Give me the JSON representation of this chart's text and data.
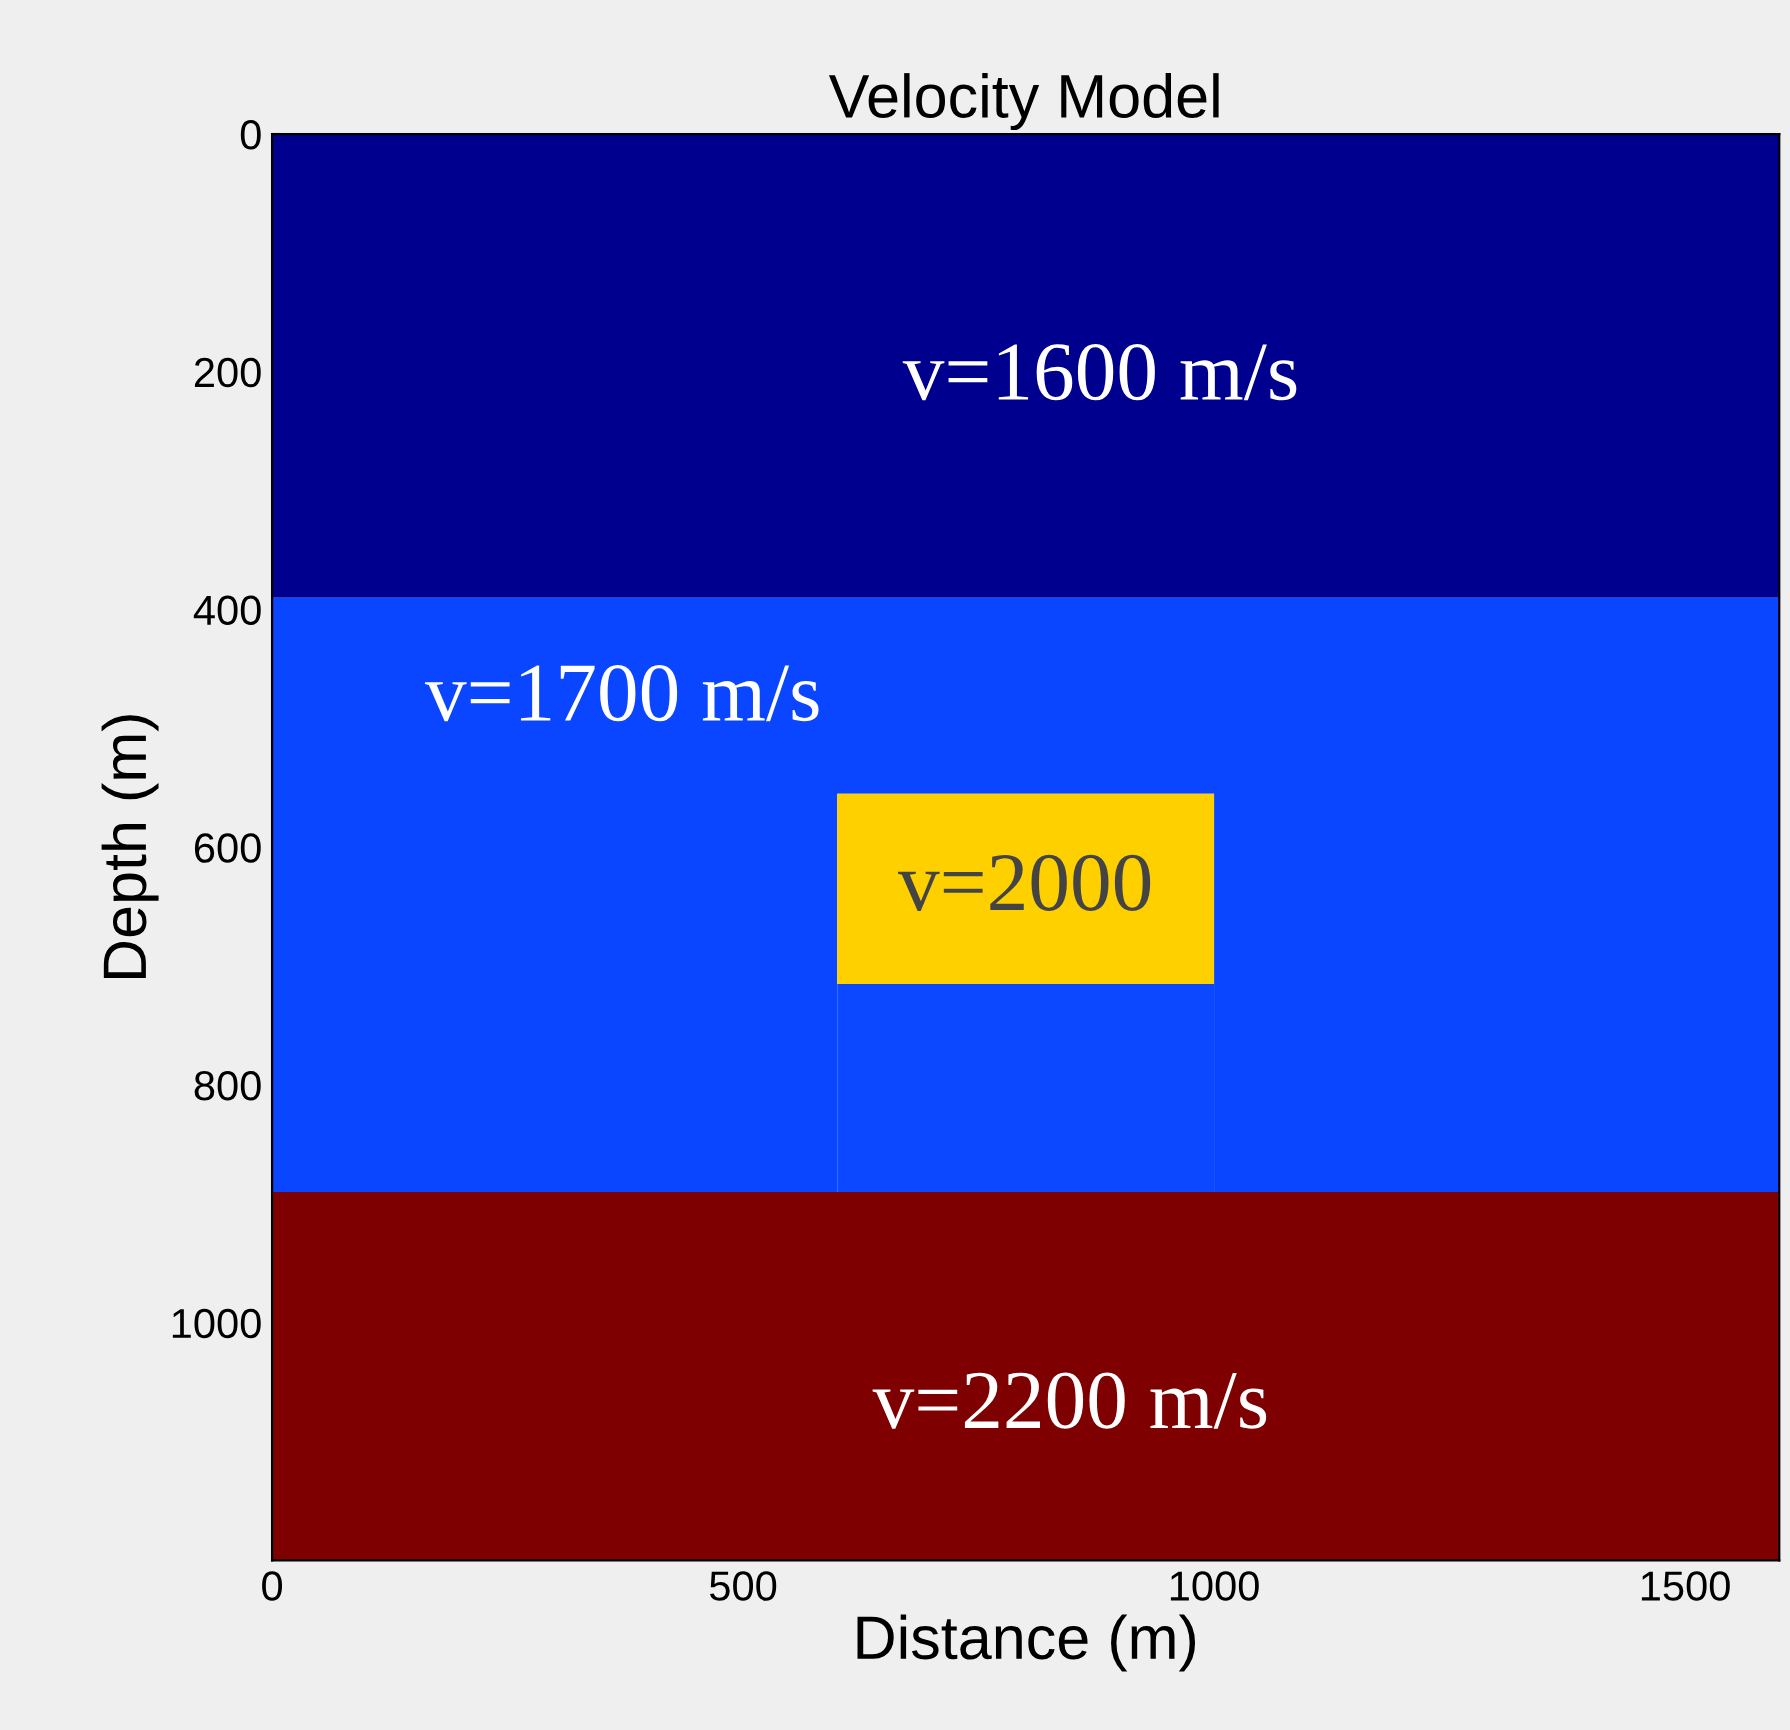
{
  "chart_data": {
    "type": "area",
    "stacked": true,
    "title": "Velocity Model",
    "xlabel": "Distance (m)",
    "ylabel": "Depth (m)",
    "xlim": [
      0,
      1600
    ],
    "ylim": [
      1200,
      0
    ],
    "xticks": [
      0,
      500,
      1000,
      1500
    ],
    "yticks": [
      0,
      200,
      400,
      600,
      800,
      1000
    ],
    "x": [
      0,
      600,
      600,
      1000,
      1000,
      1600
    ],
    "series": [
      {
        "color": "#00008f",
        "values": [
          390,
          390,
          390,
          390,
          390,
          390
        ]
      },
      {
        "color": "#0a46ff",
        "values": [
          500,
          500,
          165,
          165,
          500,
          500
        ]
      },
      {
        "color": "#ffd000",
        "values": [
          0,
          0,
          160,
          160,
          0,
          0
        ]
      },
      {
        "color": "#0b48ff",
        "values": [
          0,
          0,
          175,
          175,
          0,
          0
        ]
      },
      {
        "color": "#7f0000",
        "values": [
          310,
          310,
          310,
          310,
          310,
          310
        ]
      }
    ],
    "annotations": [
      "v=1600 m/s",
      "v=1700 m/s",
      "v=2000",
      "v=2200 m/s"
    ]
  }
}
